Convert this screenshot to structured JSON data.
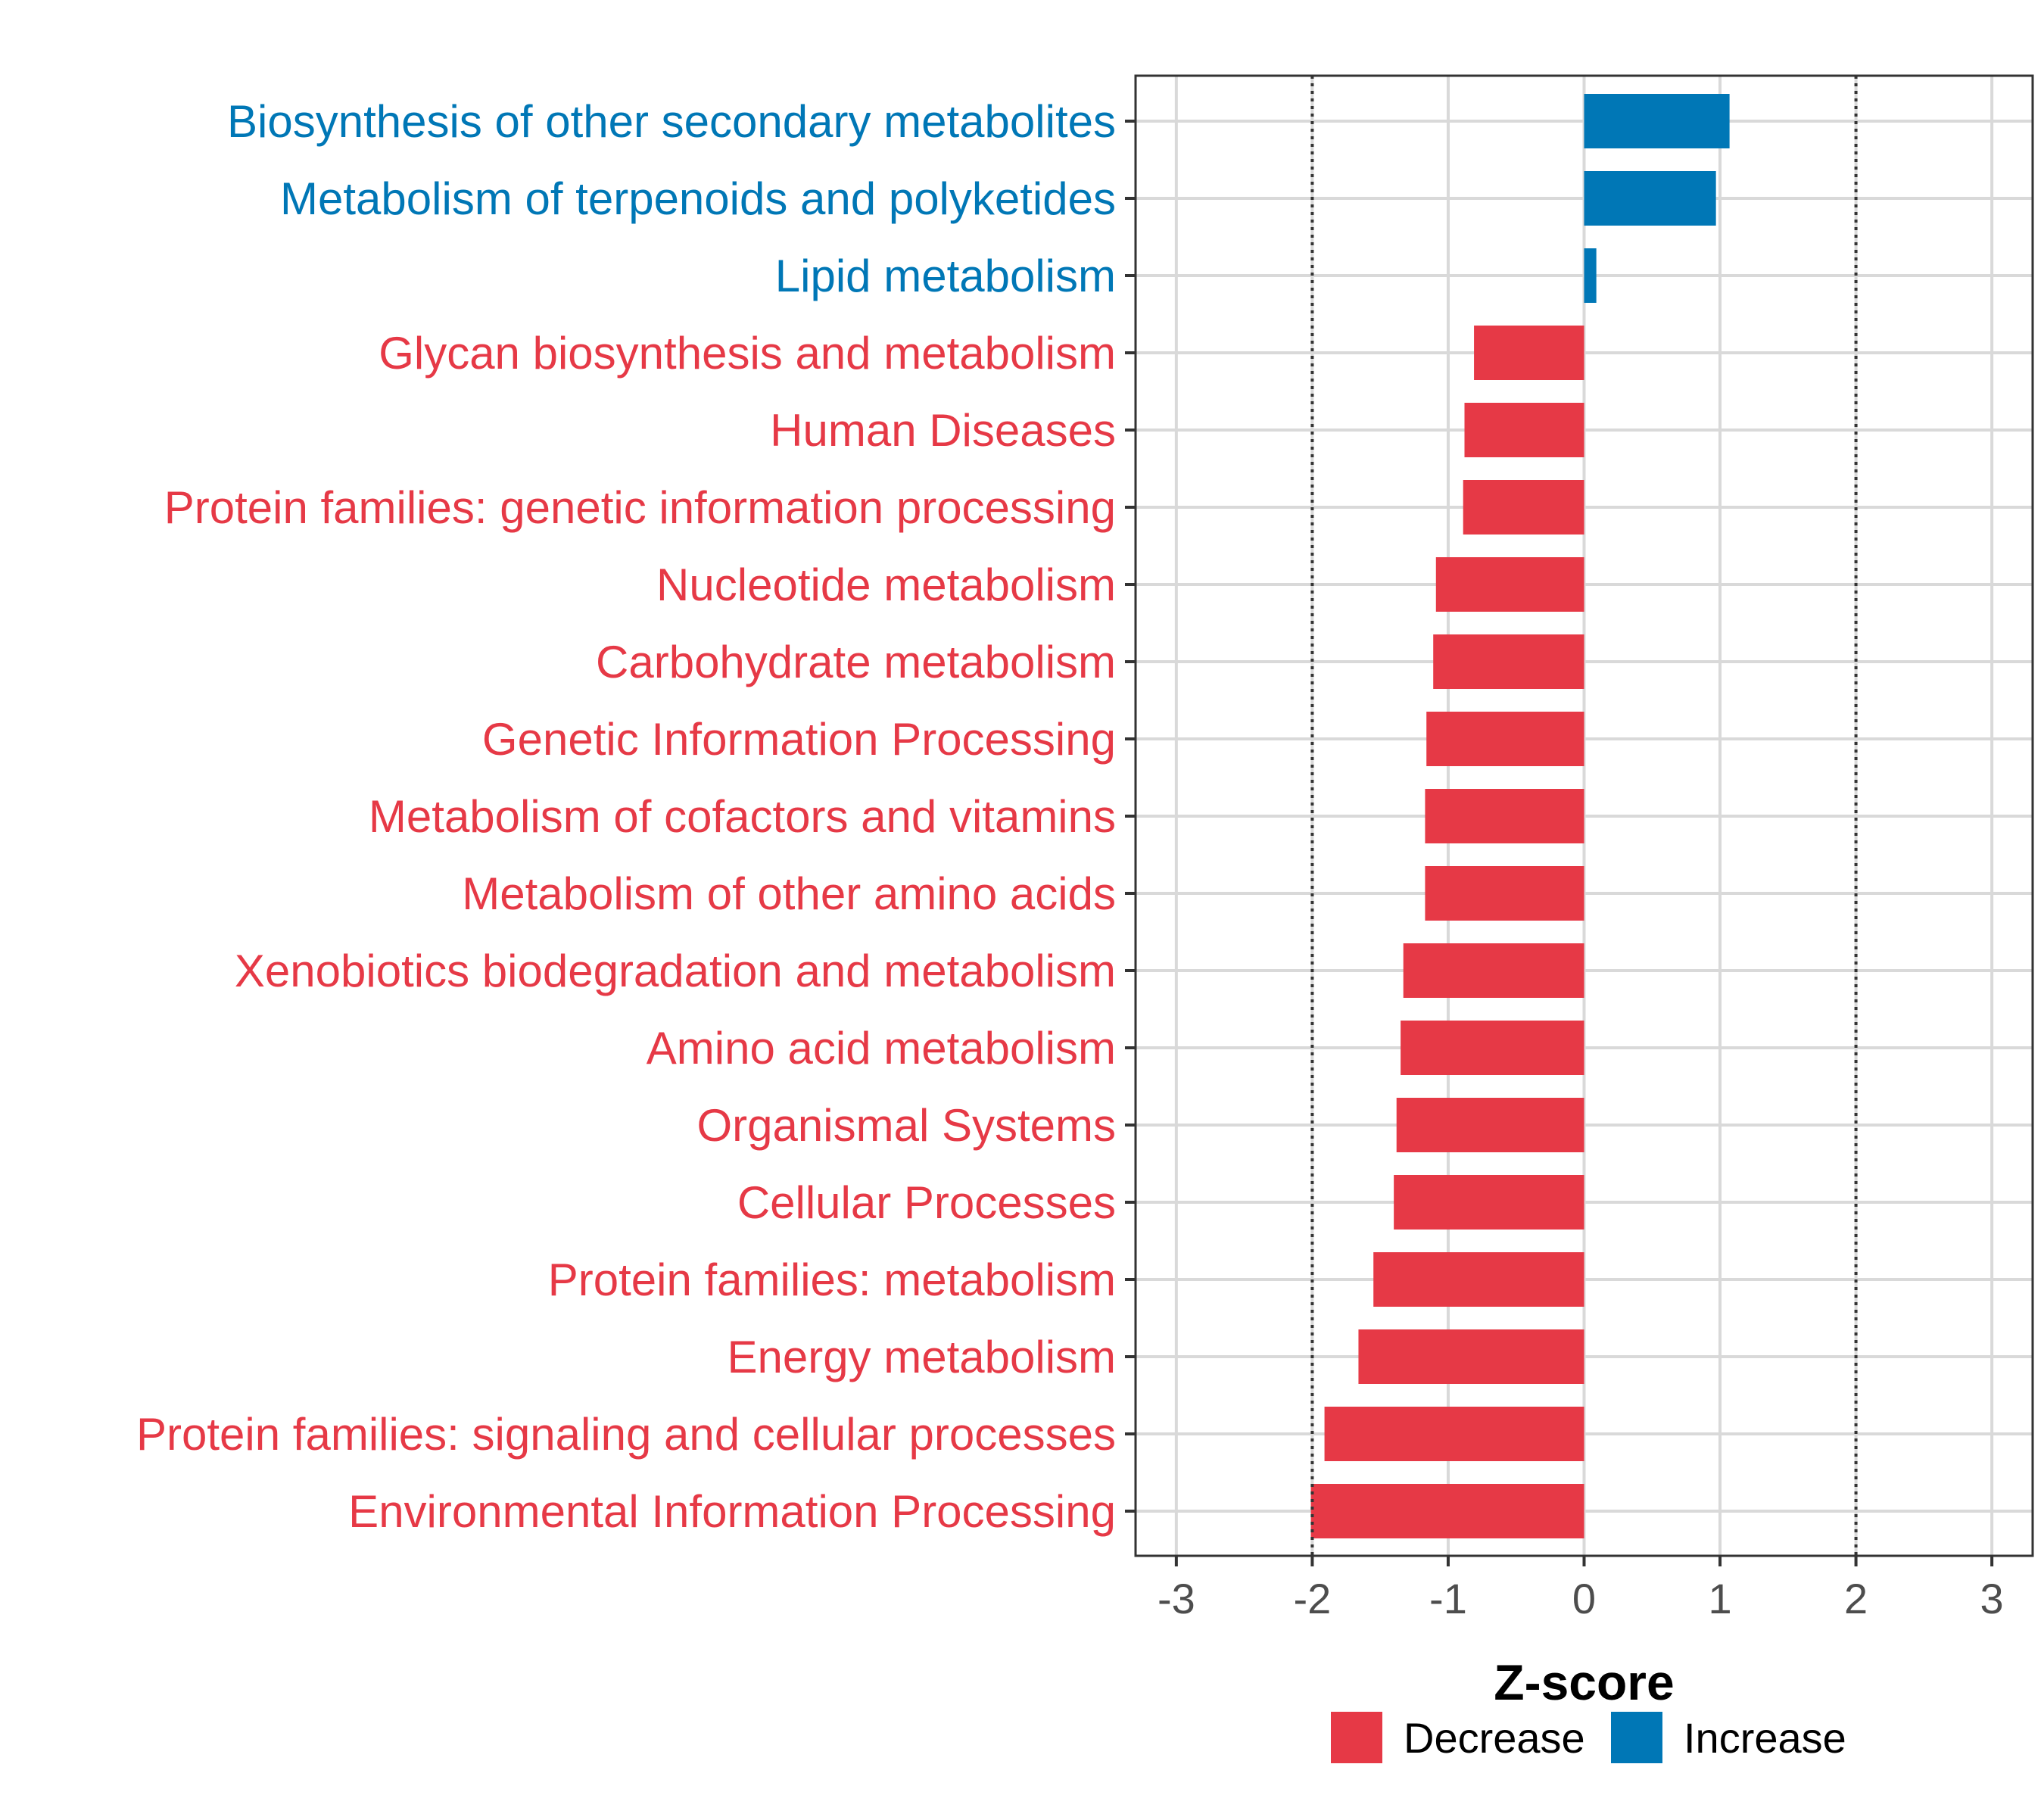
{
  "chart_data": {
    "type": "bar",
    "orientation": "horizontal",
    "title": "",
    "xlabel": "Z-score",
    "ylabel": "",
    "xlim": [
      -3.3,
      3.3
    ],
    "xticks": [
      "-3",
      "-2",
      "-1",
      "0",
      "1",
      "2",
      "3"
    ],
    "xtick_values": [
      -3,
      -2,
      -1,
      0,
      1,
      2,
      3
    ],
    "reference_lines": [
      -2,
      2
    ],
    "grid": true,
    "colors": {
      "Decrease": "#e63946",
      "Increase": "#0077b6"
    },
    "legend": {
      "position": "bottom",
      "entries": [
        "Decrease",
        "Increase"
      ]
    },
    "bars": [
      {
        "category": "Biosynthesis of other secondary metabolites",
        "value": 1.07,
        "group": "Increase"
      },
      {
        "category": "Metabolism of terpenoids and polyketides",
        "value": 0.97,
        "group": "Increase"
      },
      {
        "category": "Lipid metabolism",
        "value": 0.09,
        "group": "Increase"
      },
      {
        "category": "Glycan biosynthesis and metabolism",
        "value": -0.81,
        "group": "Decrease"
      },
      {
        "category": "Human Diseases",
        "value": -0.88,
        "group": "Decrease"
      },
      {
        "category": "Protein families: genetic information processing",
        "value": -0.89,
        "group": "Decrease"
      },
      {
        "category": "Nucleotide metabolism",
        "value": -1.09,
        "group": "Decrease"
      },
      {
        "category": "Carbohydrate metabolism",
        "value": -1.11,
        "group": "Decrease"
      },
      {
        "category": "Genetic Information Processing",
        "value": -1.16,
        "group": "Decrease"
      },
      {
        "category": "Metabolism of cofactors and vitamins",
        "value": -1.17,
        "group": "Decrease"
      },
      {
        "category": "Metabolism of other amino acids",
        "value": -1.17,
        "group": "Decrease"
      },
      {
        "category": "Xenobiotics biodegradation and metabolism",
        "value": -1.33,
        "group": "Decrease"
      },
      {
        "category": "Amino acid metabolism",
        "value": -1.35,
        "group": "Decrease"
      },
      {
        "category": "Organismal Systems",
        "value": -1.38,
        "group": "Decrease"
      },
      {
        "category": "Cellular Processes",
        "value": -1.4,
        "group": "Decrease"
      },
      {
        "category": "Protein families: metabolism",
        "value": -1.55,
        "group": "Decrease"
      },
      {
        "category": "Energy metabolism",
        "value": -1.66,
        "group": "Decrease"
      },
      {
        "category": "Protein families: signaling and cellular processes",
        "value": -1.91,
        "group": "Decrease"
      },
      {
        "category": "Environmental Information Processing",
        "value": -2.01,
        "group": "Decrease"
      }
    ]
  }
}
